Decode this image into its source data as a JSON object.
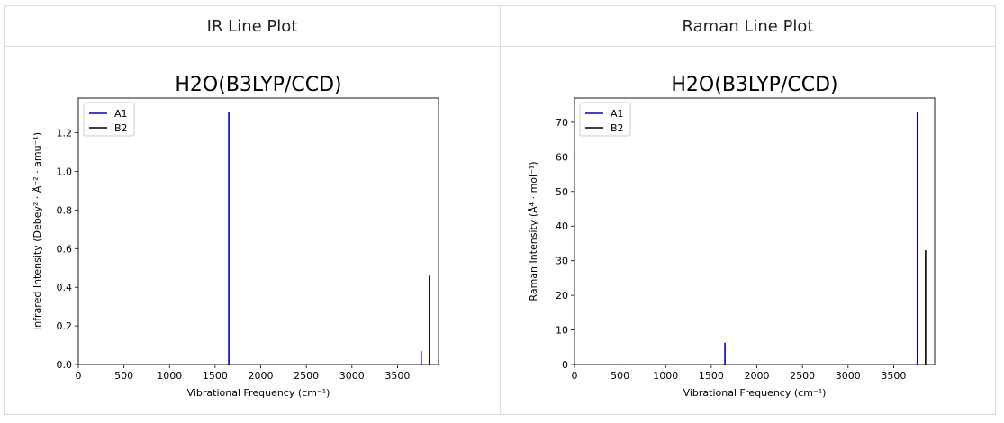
{
  "headers": {
    "ir": "IR Line Plot",
    "raman": "Raman Line Plot"
  },
  "colors": {
    "A1": "#0000cc",
    "B2": "#000000"
  },
  "chart_data": [
    {
      "type": "bar",
      "title": "H2O(B3LYP/CCD)",
      "xlabel": "Vibrational Frequency (cm⁻¹)",
      "ylabel": "Infrared Intensity (Debey² · Å⁻² · amu⁻¹)",
      "xlim": [
        0,
        3950
      ],
      "ylim": [
        0,
        1.38
      ],
      "xticks": [
        0,
        500,
        1000,
        1500,
        2000,
        2500,
        3000,
        3500
      ],
      "yticks": [
        0.0,
        0.2,
        0.4,
        0.6,
        0.8,
        1.0,
        1.2
      ],
      "ytick_decimals": 1,
      "legend_position": "upper-left",
      "series": [
        {
          "name": "A1",
          "x": [
            1650,
            3760
          ],
          "values": [
            1.31,
            0.07
          ]
        },
        {
          "name": "B2",
          "x": [
            3850
          ],
          "values": [
            0.46
          ]
        }
      ]
    },
    {
      "type": "bar",
      "title": "H2O(B3LYP/CCD)",
      "xlabel": "Vibrational Frequency (cm⁻¹)",
      "ylabel": "Raman Intensity (Å⁴ · mol⁻¹)",
      "xlim": [
        0,
        3950
      ],
      "ylim": [
        0,
        77
      ],
      "xticks": [
        0,
        500,
        1000,
        1500,
        2000,
        2500,
        3000,
        3500
      ],
      "yticks": [
        0,
        10,
        20,
        30,
        40,
        50,
        60,
        70
      ],
      "ytick_decimals": 0,
      "legend_position": "upper-left",
      "series": [
        {
          "name": "A1",
          "x": [
            1650,
            3760
          ],
          "values": [
            6.3,
            73
          ]
        },
        {
          "name": "B2",
          "x": [
            3850
          ],
          "values": [
            33
          ]
        }
      ]
    }
  ]
}
